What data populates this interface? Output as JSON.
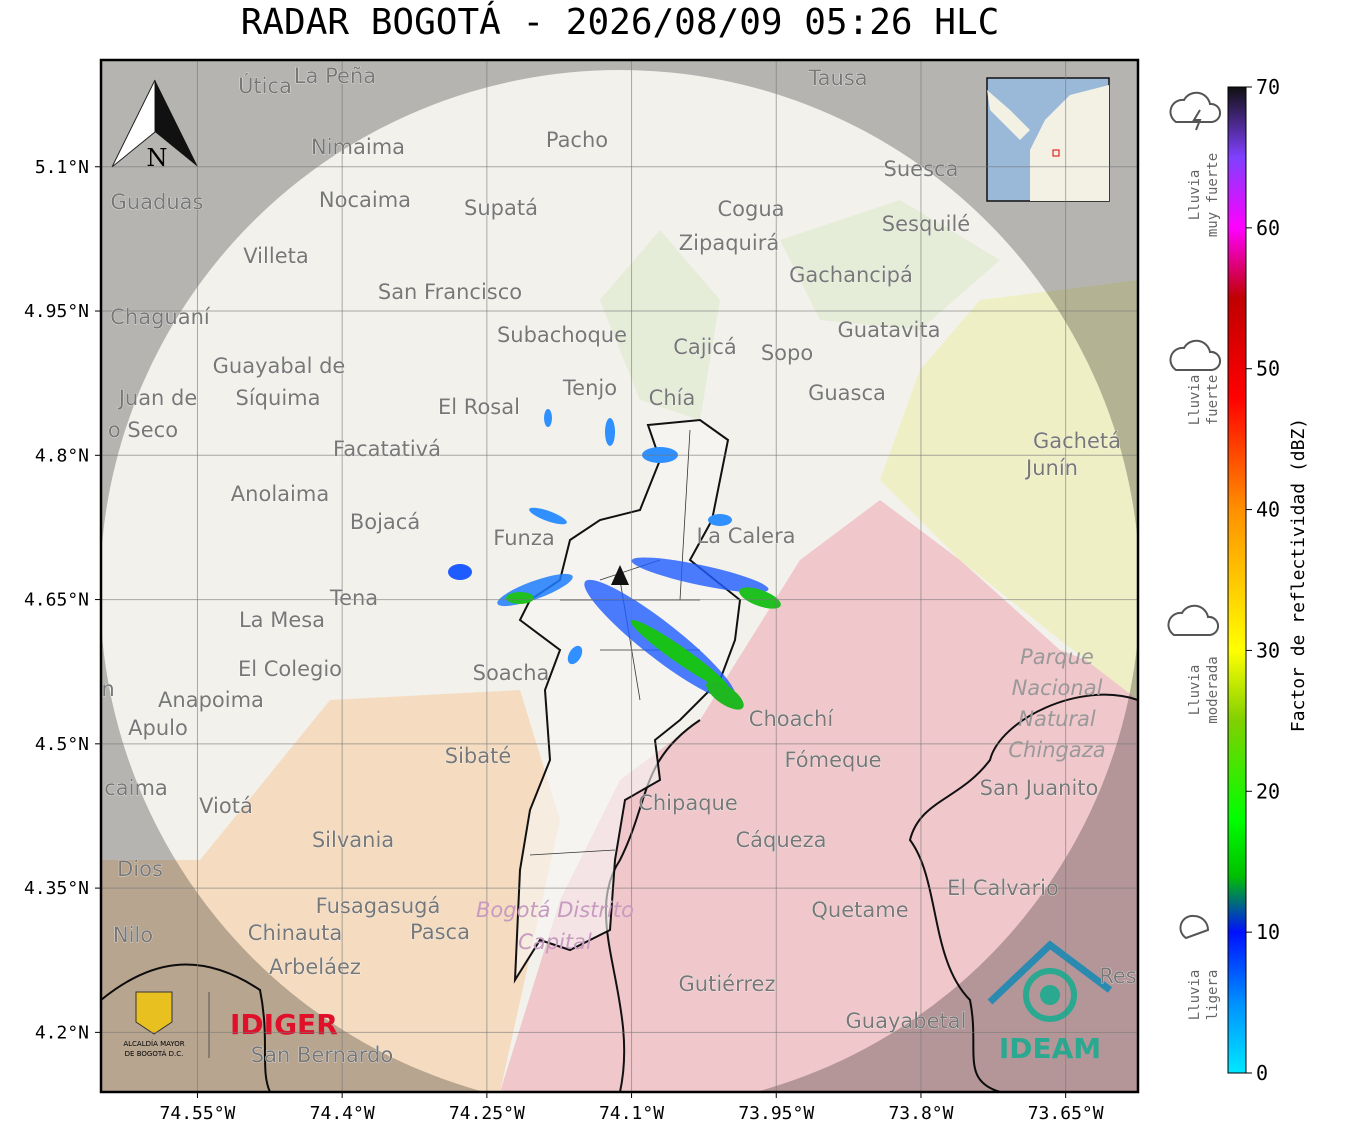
{
  "title": "RADAR BOGOTÁ - 2026/08/09 05:26 HLC",
  "map": {
    "xlim": [
      -74.65,
      -73.575
    ],
    "ylim": [
      4.138,
      5.211
    ],
    "grid": true,
    "xticks": [
      {
        "value": -74.55,
        "label": "74.55°W"
      },
      {
        "value": -74.4,
        "label": "74.4°W"
      },
      {
        "value": -74.25,
        "label": "74.25°W"
      },
      {
        "value": -74.1,
        "label": "74.1°W"
      },
      {
        "value": -73.95,
        "label": "73.95°W"
      },
      {
        "value": -73.8,
        "label": "73.8°W"
      },
      {
        "value": -73.65,
        "label": "73.65°W"
      }
    ],
    "yticks": [
      {
        "value": 5.1,
        "label": "5.1°N"
      },
      {
        "value": 4.95,
        "label": "4.95°N"
      },
      {
        "value": 4.8,
        "label": "4.8°N"
      },
      {
        "value": 4.65,
        "label": "4.65°N"
      },
      {
        "value": 4.5,
        "label": "4.5°N"
      },
      {
        "value": 4.35,
        "label": "4.35°N"
      },
      {
        "value": 4.2,
        "label": "4.2°N"
      }
    ],
    "places": [
      "Útica",
      "La Peña",
      "Tausa",
      "Nimaima",
      "Pacho",
      "Guaduas",
      "Nocaima",
      "Supatá",
      "Cogua",
      "Suesca",
      "Sesquilé",
      "Villeta",
      "Zipaquirá",
      "Gachancipá",
      "San Francisco",
      "Chaguaní",
      "Subachoque",
      "Cajicá",
      "Sopo",
      "Guatavita",
      "Guayabal de",
      "Síquima",
      "Juan de",
      "o Seco",
      "Tenjo",
      "Chía",
      "Guasca",
      "El Rosal",
      "Facatativá",
      "Gachetá",
      "Junín",
      "Anolaima",
      "Bojacá",
      "Funza",
      "La Calera",
      "Tena",
      "La Mesa",
      "El Colegio",
      "Soacha",
      "Anapoima",
      "Apulo",
      "Choachí",
      "Sibaté",
      "Fómeque",
      "San Juanito",
      "caima",
      "Viotá",
      "Chipaque",
      "Silvania",
      "Cáqueza",
      "Dios",
      "El Calvario",
      "Fusagasugá",
      "Quetame",
      "Nilo",
      "Chinauta",
      "Pasca",
      "Arbeláez",
      "Gutiérrez",
      "Guayabetal",
      "San Bernardo",
      "n",
      "Res"
    ],
    "park": [
      "Parque",
      "Nacional",
      "Natural",
      "Chingaza"
    ],
    "district": [
      "Bogotá Distrito",
      "Capital"
    ],
    "north": "N"
  },
  "colorbar": {
    "label": "Factor de reflectividad (dBZ)",
    "lim": [
      0,
      70
    ],
    "ticks": [
      0,
      10,
      20,
      30,
      40,
      50,
      60,
      70
    ],
    "colorscale": [
      [
        0,
        "#00e8ff"
      ],
      [
        5,
        "#0090ff"
      ],
      [
        10,
        "#0010ff"
      ],
      [
        14,
        "#00c000"
      ],
      [
        18,
        "#00ff00"
      ],
      [
        25,
        "#80d000"
      ],
      [
        30,
        "#ffff00"
      ],
      [
        40,
        "#ff9000"
      ],
      [
        48,
        "#ff0000"
      ],
      [
        55,
        "#c00000"
      ],
      [
        60,
        "#ff00ff"
      ],
      [
        65,
        "#8040ff"
      ],
      [
        70,
        "#101010"
      ]
    ]
  },
  "rain_legend": [
    [
      "Lluvia",
      "muy fuerte"
    ],
    [
      "Lluvia",
      "fuerte"
    ],
    [
      "Lluvia",
      "moderada"
    ],
    [
      "Lluvia",
      "ligera"
    ]
  ],
  "logos": {
    "alcaldia": [
      "ALCALDÍA MAYOR",
      "DE BOGOTÁ D.C."
    ],
    "idiger": "IDIGER",
    "ideam": "IDEAM"
  }
}
